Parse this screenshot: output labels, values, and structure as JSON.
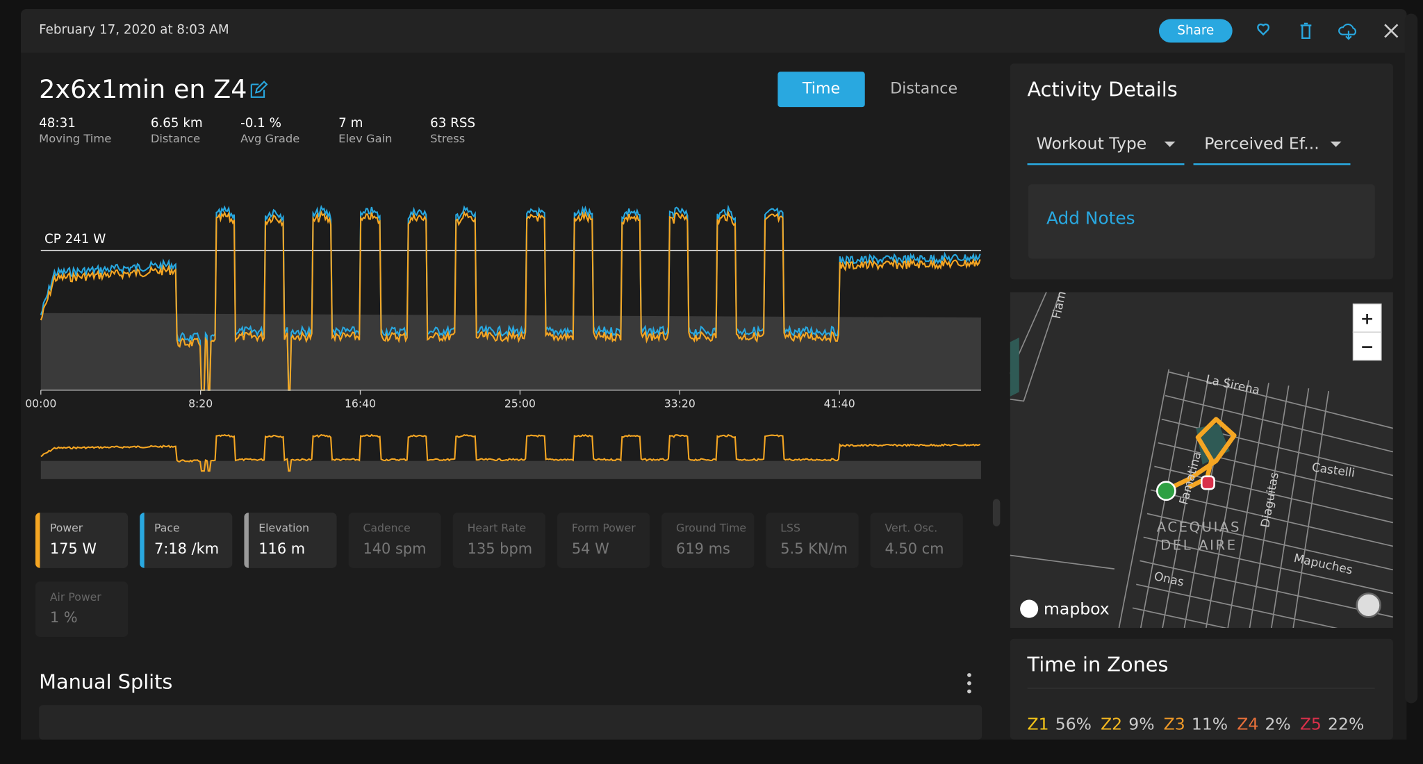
{
  "header": {
    "date": "February 17, 2020 at 8:03 AM",
    "share": "Share"
  },
  "activity": {
    "title": "2x6x1min en Z4",
    "toggle": [
      "Time",
      "Distance"
    ],
    "stats": [
      {
        "value": "48:31",
        "label": "Moving Time"
      },
      {
        "value": "6.65 km",
        "label": "Distance"
      },
      {
        "value": "-0.1 %",
        "label": "Avg Grade"
      },
      {
        "value": "7 m",
        "label": "Elev Gain"
      },
      {
        "value": "63 RSS",
        "label": "Stress"
      }
    ]
  },
  "graph": {
    "cp_label": "CP 241 W",
    "x_labels": [
      "00:00",
      "8:20",
      "16:40",
      "25:00",
      "33:20",
      "41:40"
    ]
  },
  "metrics": [
    {
      "label": "Power",
      "value": "175 W",
      "color": "#f5a623"
    },
    {
      "label": "Pace",
      "value": "7:18 /km",
      "color": "#29a8e0"
    },
    {
      "label": "Elevation",
      "value": "116 m",
      "color": "#9a9a9a"
    },
    {
      "label": "Cadence",
      "value": "140 spm"
    },
    {
      "label": "Heart Rate",
      "value": "135 bpm"
    },
    {
      "label": "Form Power",
      "value": "54 W"
    },
    {
      "label": "Ground Time",
      "value": "619 ms"
    },
    {
      "label": "LSS",
      "value": "5.5 KN/m"
    },
    {
      "label": "Vert. Osc.",
      "value": "4.50 cm"
    },
    {
      "label": "Air Power",
      "value": "1 %"
    }
  ],
  "splits": {
    "title": "Manual Splits"
  },
  "details": {
    "title": "Activity Details",
    "dropdowns": [
      "Workout Type",
      "Perceived Ef..."
    ],
    "notes": "Add Notes"
  },
  "map": {
    "streets": [
      "La Sirena",
      "Castelli",
      "Famatina",
      "Diaguitas",
      "Mapuches",
      "Onas",
      "Fiam"
    ],
    "area": [
      "ACEQUIAS",
      "DEL AIRE"
    ],
    "zoom": [
      "+",
      "−"
    ],
    "brand": "mapbox"
  },
  "zones": {
    "title": "Time in Zones",
    "items": [
      {
        "name": "Z1",
        "value": "56%",
        "color": "#f5c518"
      },
      {
        "name": "Z2",
        "value": "9%",
        "color": "#f5b820"
      },
      {
        "name": "Z3",
        "value": "11%",
        "color": "#f09a28"
      },
      {
        "name": "Z4",
        "value": "2%",
        "color": "#e8703a"
      },
      {
        "name": "Z5",
        "value": "22%",
        "color": "#d9304a"
      }
    ]
  }
}
